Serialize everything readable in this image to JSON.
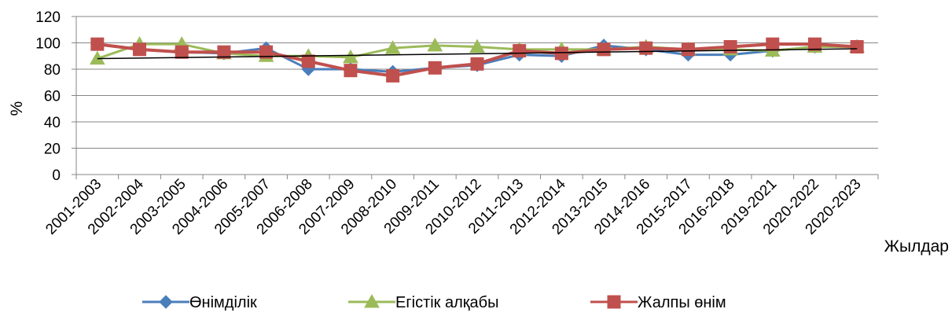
{
  "chart_data": {
    "type": "line",
    "title": "",
    "ylabel": "%",
    "xlabel": "Жылдар",
    "ylim": [
      0,
      120
    ],
    "yticks": [
      0,
      20,
      40,
      60,
      80,
      100,
      120
    ],
    "grid": true,
    "legend_position": "bottom",
    "categories": [
      "2001-2003",
      "2002-2004",
      "2003-2005",
      "2004-2006",
      "2005-2007",
      "2006-2008",
      "2007-2009",
      "2008-2010",
      "2009-2011",
      "2010-2012",
      "2011-2013",
      "2012-2014",
      "2013-2015",
      "2014-2016",
      "2015-2017",
      "2016-2018",
      "2019-2021",
      "2020-2022",
      "2020-2023"
    ],
    "series": [
      {
        "name": "Өнімділік",
        "color": "#4a7ebb",
        "marker": "diamond",
        "values": [
          99,
          95,
          93,
          92,
          96,
          80,
          80,
          78,
          81,
          83,
          91,
          90,
          98,
          95,
          91,
          91,
          94,
          97,
          97
        ]
      },
      {
        "name": "Егістік алқабы",
        "color": "#9bbb59",
        "marker": "triangle",
        "values": [
          88,
          99,
          99,
          92,
          90,
          90,
          89,
          96,
          98,
          97,
          95,
          95,
          95,
          97,
          95,
          95,
          94,
          97,
          97
        ]
      },
      {
        "name": "Жалпы өнім",
        "color": "#c0504d",
        "marker": "square",
        "values": [
          99,
          95,
          93,
          93,
          93,
          86,
          79,
          75,
          81,
          84,
          94,
          92,
          95,
          96,
          95,
          97,
          99,
          99,
          97
        ]
      }
    ],
    "trendline": {
      "color": "#000000",
      "values": [
        88,
        95.5
      ]
    }
  }
}
